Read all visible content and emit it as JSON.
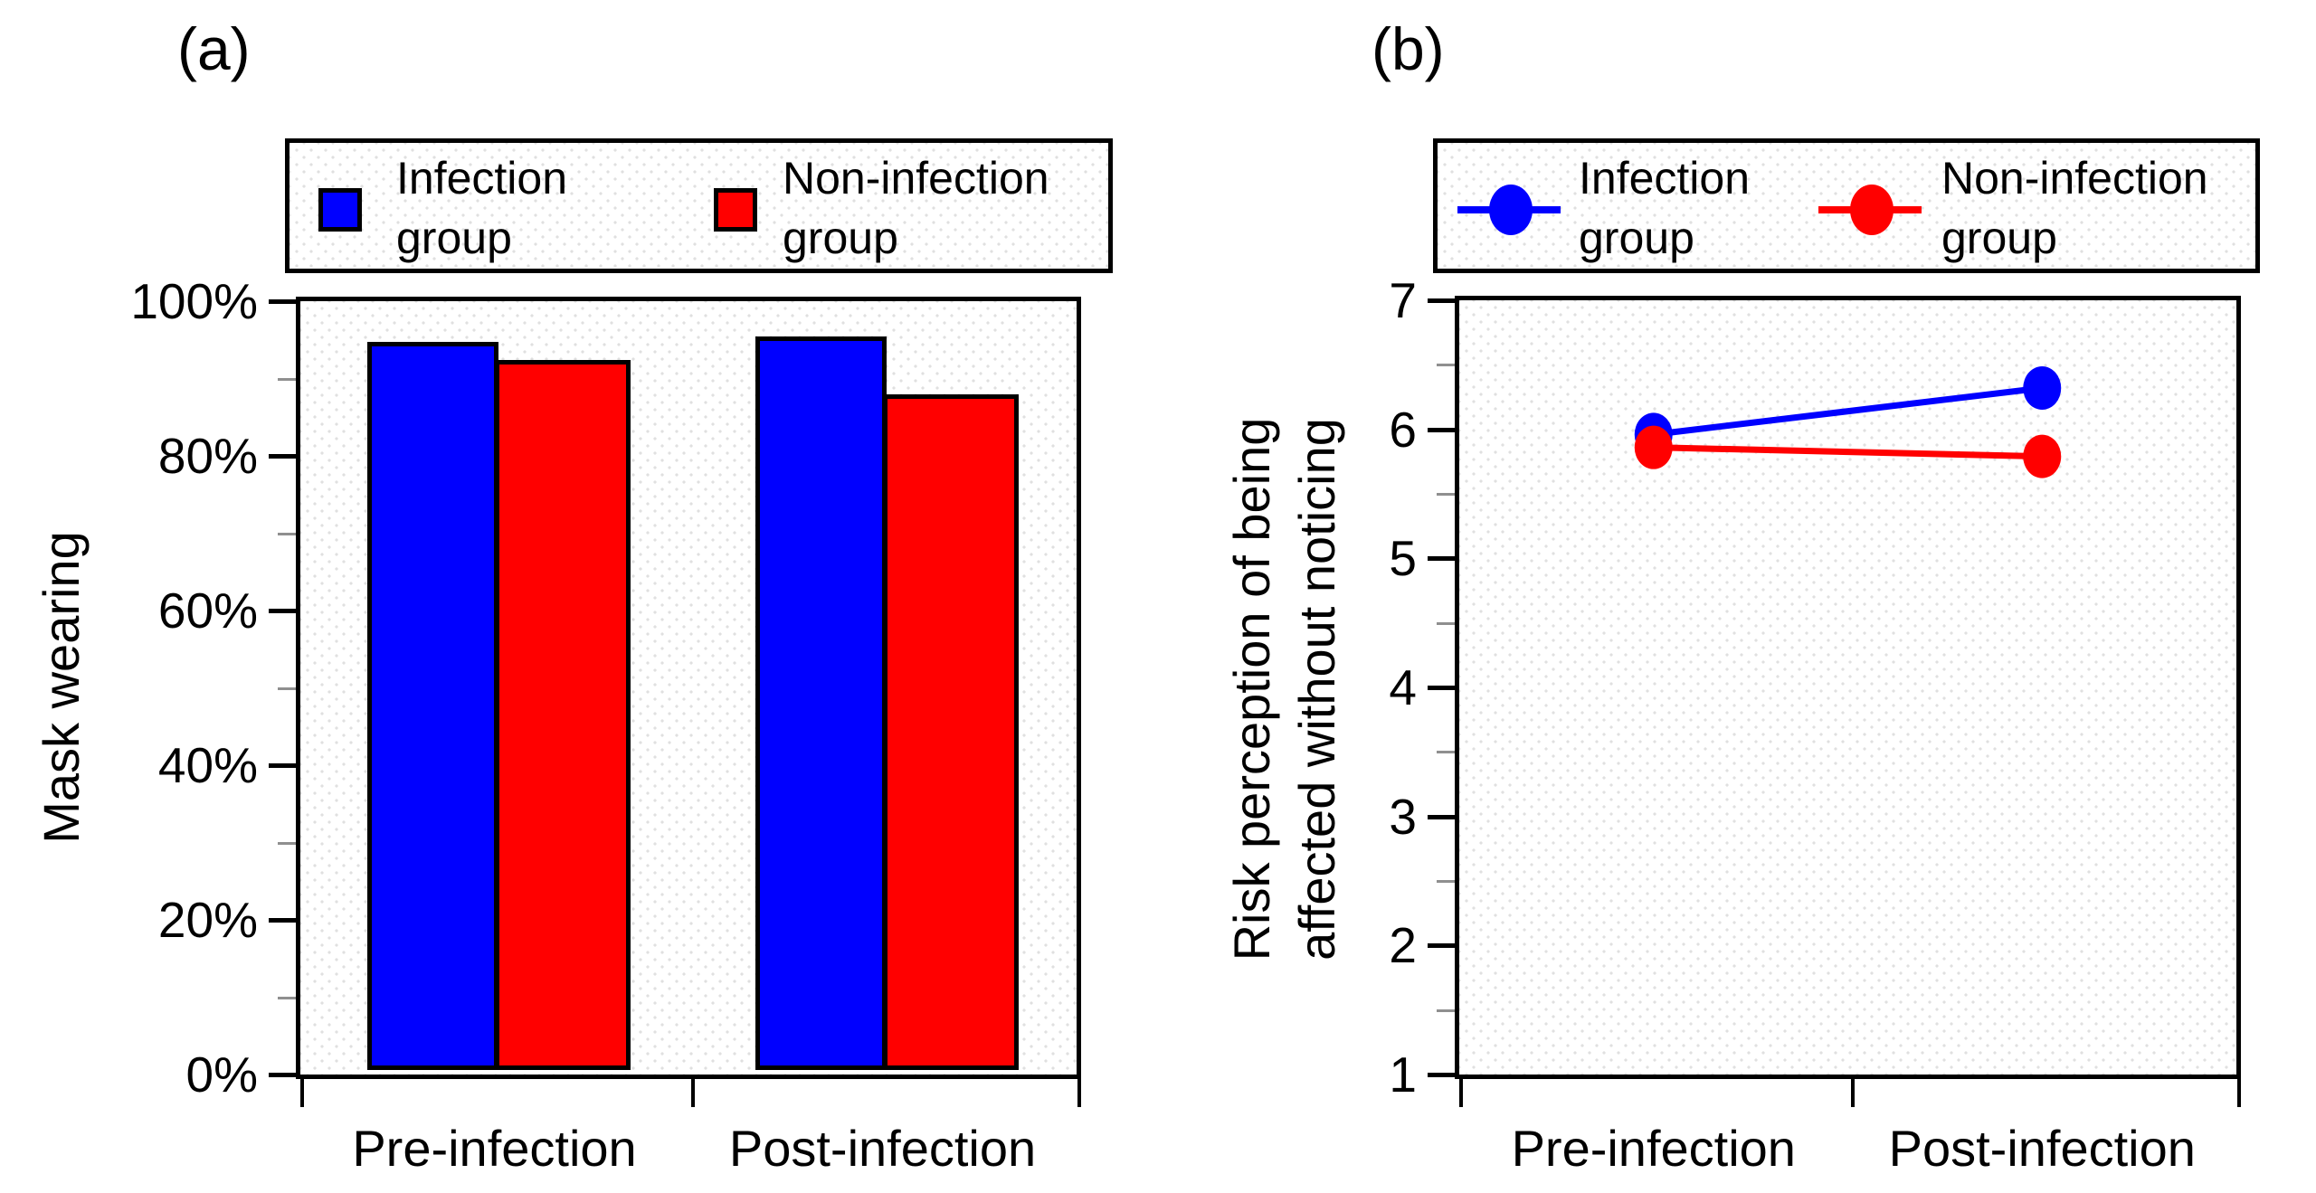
{
  "figure": {
    "panel_a": {
      "tag": "(a)",
      "ylabel": "Mask wearing"
    },
    "panel_b": {
      "tag": "(b)",
      "ylabel_line1": "Risk perception of being",
      "ylabel_line2": "affected without noticing"
    },
    "colors": {
      "infection": "#0000ff",
      "non_infection": "#ff0000",
      "axis": "#000000",
      "minor_tick": "#8f8f8f"
    }
  },
  "chart_data": [
    {
      "type": "bar",
      "panel": "(a)",
      "title": "",
      "categories": [
        "Pre-infection",
        "Post-infection"
      ],
      "series": [
        {
          "name": "Infection group",
          "color": "#0000ff",
          "values": [
            94.2,
            94.9
          ]
        },
        {
          "name": "Non-infection group",
          "color": "#ff0000",
          "values": [
            91.8,
            87.4
          ]
        }
      ],
      "xlabel": "",
      "ylabel": "Mask wearing",
      "ylim": [
        0,
        100
      ],
      "ytick_values": [
        0,
        20,
        40,
        60,
        80,
        100
      ],
      "ytick_labels": [
        "0%",
        "20%",
        "40%",
        "60%",
        "80%",
        "100%"
      ],
      "minor_tick_values": [
        10,
        30,
        50,
        70,
        90
      ],
      "grid": false,
      "legend_position": "top"
    },
    {
      "type": "line",
      "panel": "(b)",
      "title": "",
      "categories": [
        "Pre-infection",
        "Post-infection"
      ],
      "series": [
        {
          "name": "Infection group",
          "color": "#0000ff",
          "values": [
            5.96,
            6.32
          ]
        },
        {
          "name": "Non-infection group",
          "color": "#ff0000",
          "values": [
            5.86,
            5.79
          ]
        }
      ],
      "xlabel": "",
      "ylabel": "Risk perception of being affected without noticing",
      "ylim": [
        1,
        7
      ],
      "ytick_values": [
        1,
        2,
        3,
        4,
        5,
        6,
        7
      ],
      "ytick_labels": [
        "1",
        "2",
        "3",
        "4",
        "5",
        "6",
        "7"
      ],
      "minor_tick_values": [
        1.5,
        2.5,
        3.5,
        4.5,
        5.5,
        6.5
      ],
      "grid": false,
      "legend_position": "top"
    }
  ]
}
